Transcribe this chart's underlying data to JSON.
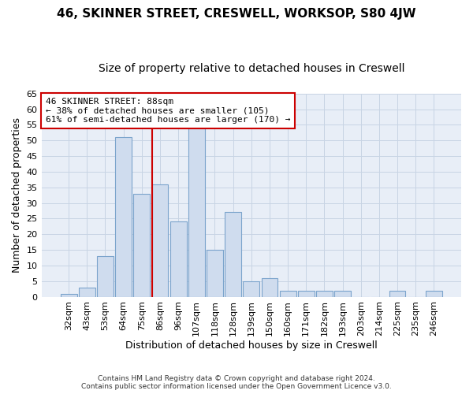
{
  "title": "46, SKINNER STREET, CRESWELL, WORKSOP, S80 4JW",
  "subtitle": "Size of property relative to detached houses in Creswell",
  "xlabel": "Distribution of detached houses by size in Creswell",
  "ylabel": "Number of detached properties",
  "categories": [
    "32sqm",
    "43sqm",
    "53sqm",
    "64sqm",
    "75sqm",
    "86sqm",
    "96sqm",
    "107sqm",
    "118sqm",
    "128sqm",
    "139sqm",
    "150sqm",
    "160sqm",
    "171sqm",
    "182sqm",
    "193sqm",
    "203sqm",
    "214sqm",
    "225sqm",
    "235sqm",
    "246sqm"
  ],
  "values": [
    1,
    3,
    13,
    51,
    33,
    36,
    24,
    54,
    15,
    27,
    5,
    6,
    2,
    2,
    2,
    2,
    0,
    0,
    2,
    0,
    2
  ],
  "bar_color": "#cfdcee",
  "bar_edge_color": "#7ba4cc",
  "grid_color": "#c8d4e4",
  "vline_bar_index": 5,
  "vline_color": "#cc0000",
  "annotation_text": "46 SKINNER STREET: 88sqm\n← 38% of detached houses are smaller (105)\n61% of semi-detached houses are larger (170) →",
  "annotation_box_color": "#ffffff",
  "annotation_box_edge": "#cc0000",
  "ylim": [
    0,
    65
  ],
  "yticks": [
    0,
    5,
    10,
    15,
    20,
    25,
    30,
    35,
    40,
    45,
    50,
    55,
    60,
    65
  ],
  "footer_line1": "Contains HM Land Registry data © Crown copyright and database right 2024.",
  "footer_line2": "Contains public sector information licensed under the Open Government Licence v3.0.",
  "plot_bg_color": "#e8eef7",
  "fig_bg_color": "#ffffff",
  "title_fontsize": 11,
  "subtitle_fontsize": 10,
  "label_fontsize": 9,
  "tick_fontsize": 8
}
